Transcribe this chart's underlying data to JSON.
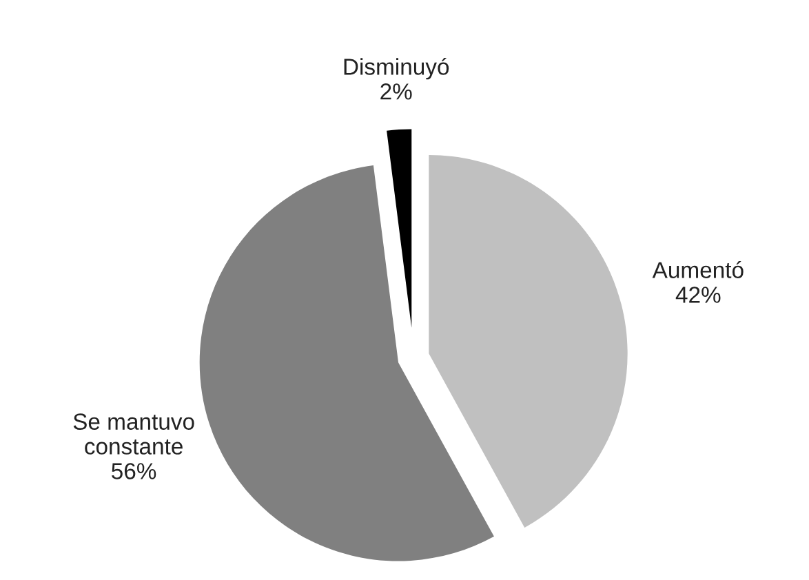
{
  "chart_data": {
    "type": "pie",
    "categories": [
      "Aumentó",
      "Se mantuvo\nconstante",
      "Disminuyó"
    ],
    "values": [
      42,
      56,
      2
    ],
    "value_labels": [
      "42%",
      "56%",
      "2%"
    ],
    "colors": [
      "#c0c0c0",
      "#808080",
      "#000000"
    ]
  }
}
